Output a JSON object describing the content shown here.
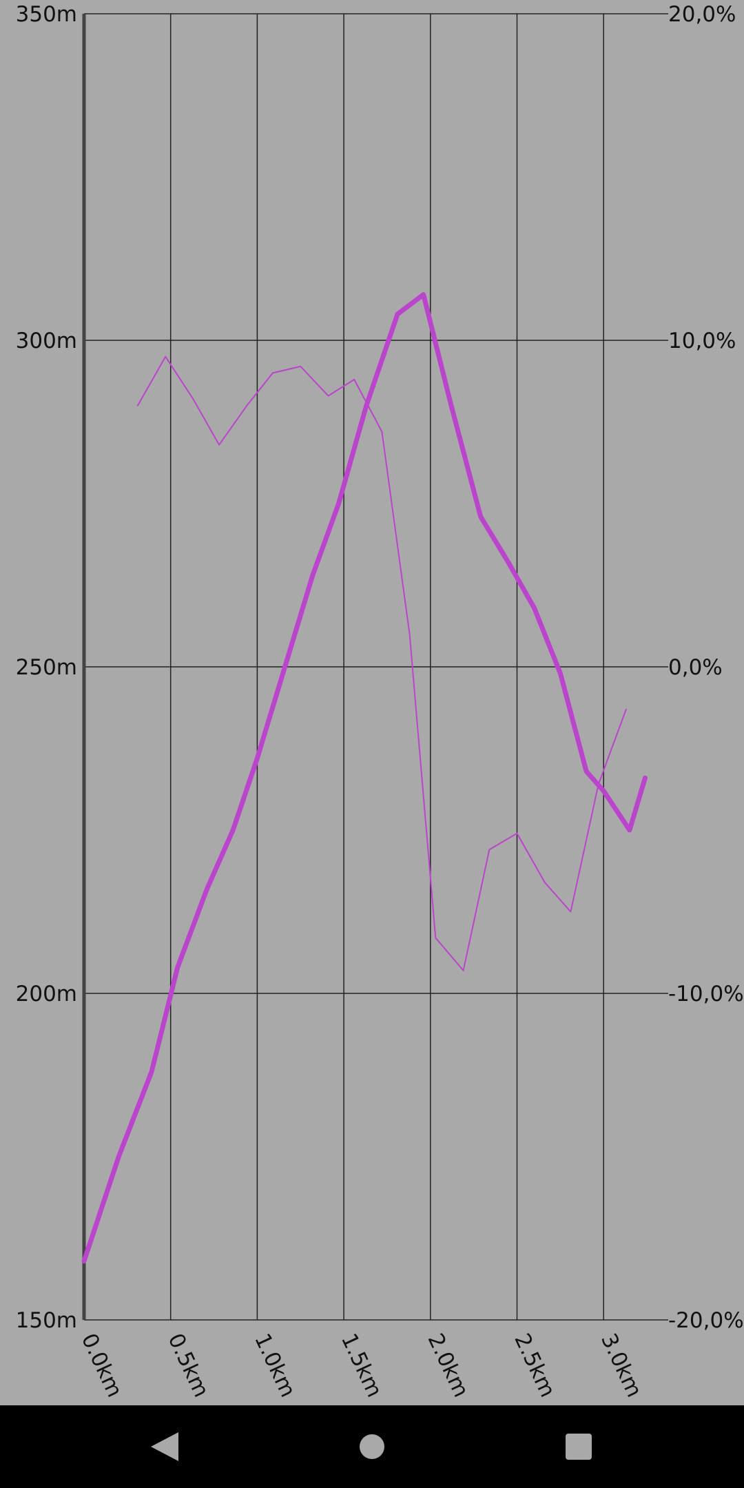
{
  "chart_data": {
    "type": "line",
    "title": "",
    "x_ticks": [
      "0.0km",
      "0.5km",
      "1.0km",
      "1.5km",
      "2.0km",
      "2.5km",
      "3.0km"
    ],
    "x_tick_values": [
      0,
      0.5,
      1.0,
      1.5,
      2.0,
      2.5,
      3.0
    ],
    "xlim": [
      0,
      3.4
    ],
    "y_left_ticks": [
      "350m",
      "300m",
      "250m",
      "200m",
      "150m"
    ],
    "y_left_tick_values": [
      350,
      300,
      250,
      200,
      150
    ],
    "ylim_left": [
      150,
      350
    ],
    "y_right_ticks": [
      "20,0%",
      "10,0%",
      "0,0%",
      "-10,0%",
      "-20,0%"
    ],
    "y_right_tick_values": [
      20,
      10,
      0,
      -10,
      -20
    ],
    "ylim_right": [
      -20,
      20
    ],
    "grid": true,
    "series": [
      {
        "axis": "left",
        "color": "#bb44cc",
        "x": [
          0.0,
          0.2,
          0.39,
          0.54,
          0.71,
          0.86,
          1.0,
          1.16,
          1.32,
          1.47,
          1.63,
          1.81,
          1.96,
          2.12,
          2.29,
          2.45,
          2.6,
          2.75,
          2.9,
          3.0,
          3.15,
          3.24
        ],
        "y": [
          159,
          175,
          188,
          204,
          216,
          225,
          236,
          250,
          264,
          275,
          290,
          304,
          307,
          290,
          273,
          266,
          259,
          249,
          234,
          231,
          225,
          233
        ]
      },
      {
        "axis": "right",
        "color": "#bb44cc",
        "x": [
          0.31,
          0.47,
          0.63,
          0.78,
          0.94,
          1.09,
          1.25,
          1.41,
          1.56,
          1.72,
          1.88,
          2.03,
          2.19,
          2.34,
          2.5,
          2.66,
          2.81,
          2.97,
          3.13
        ],
        "y": [
          8.0,
          9.5,
          8.2,
          6.8,
          8.0,
          9.0,
          9.2,
          8.3,
          8.8,
          7.2,
          1.0,
          -8.3,
          -9.3,
          -5.6,
          -5.1,
          -6.6,
          -7.5,
          -3.6,
          -1.3
        ]
      }
    ]
  },
  "navbar": {
    "back": "back-icon",
    "home": "home-icon",
    "recents": "recents-icon"
  }
}
